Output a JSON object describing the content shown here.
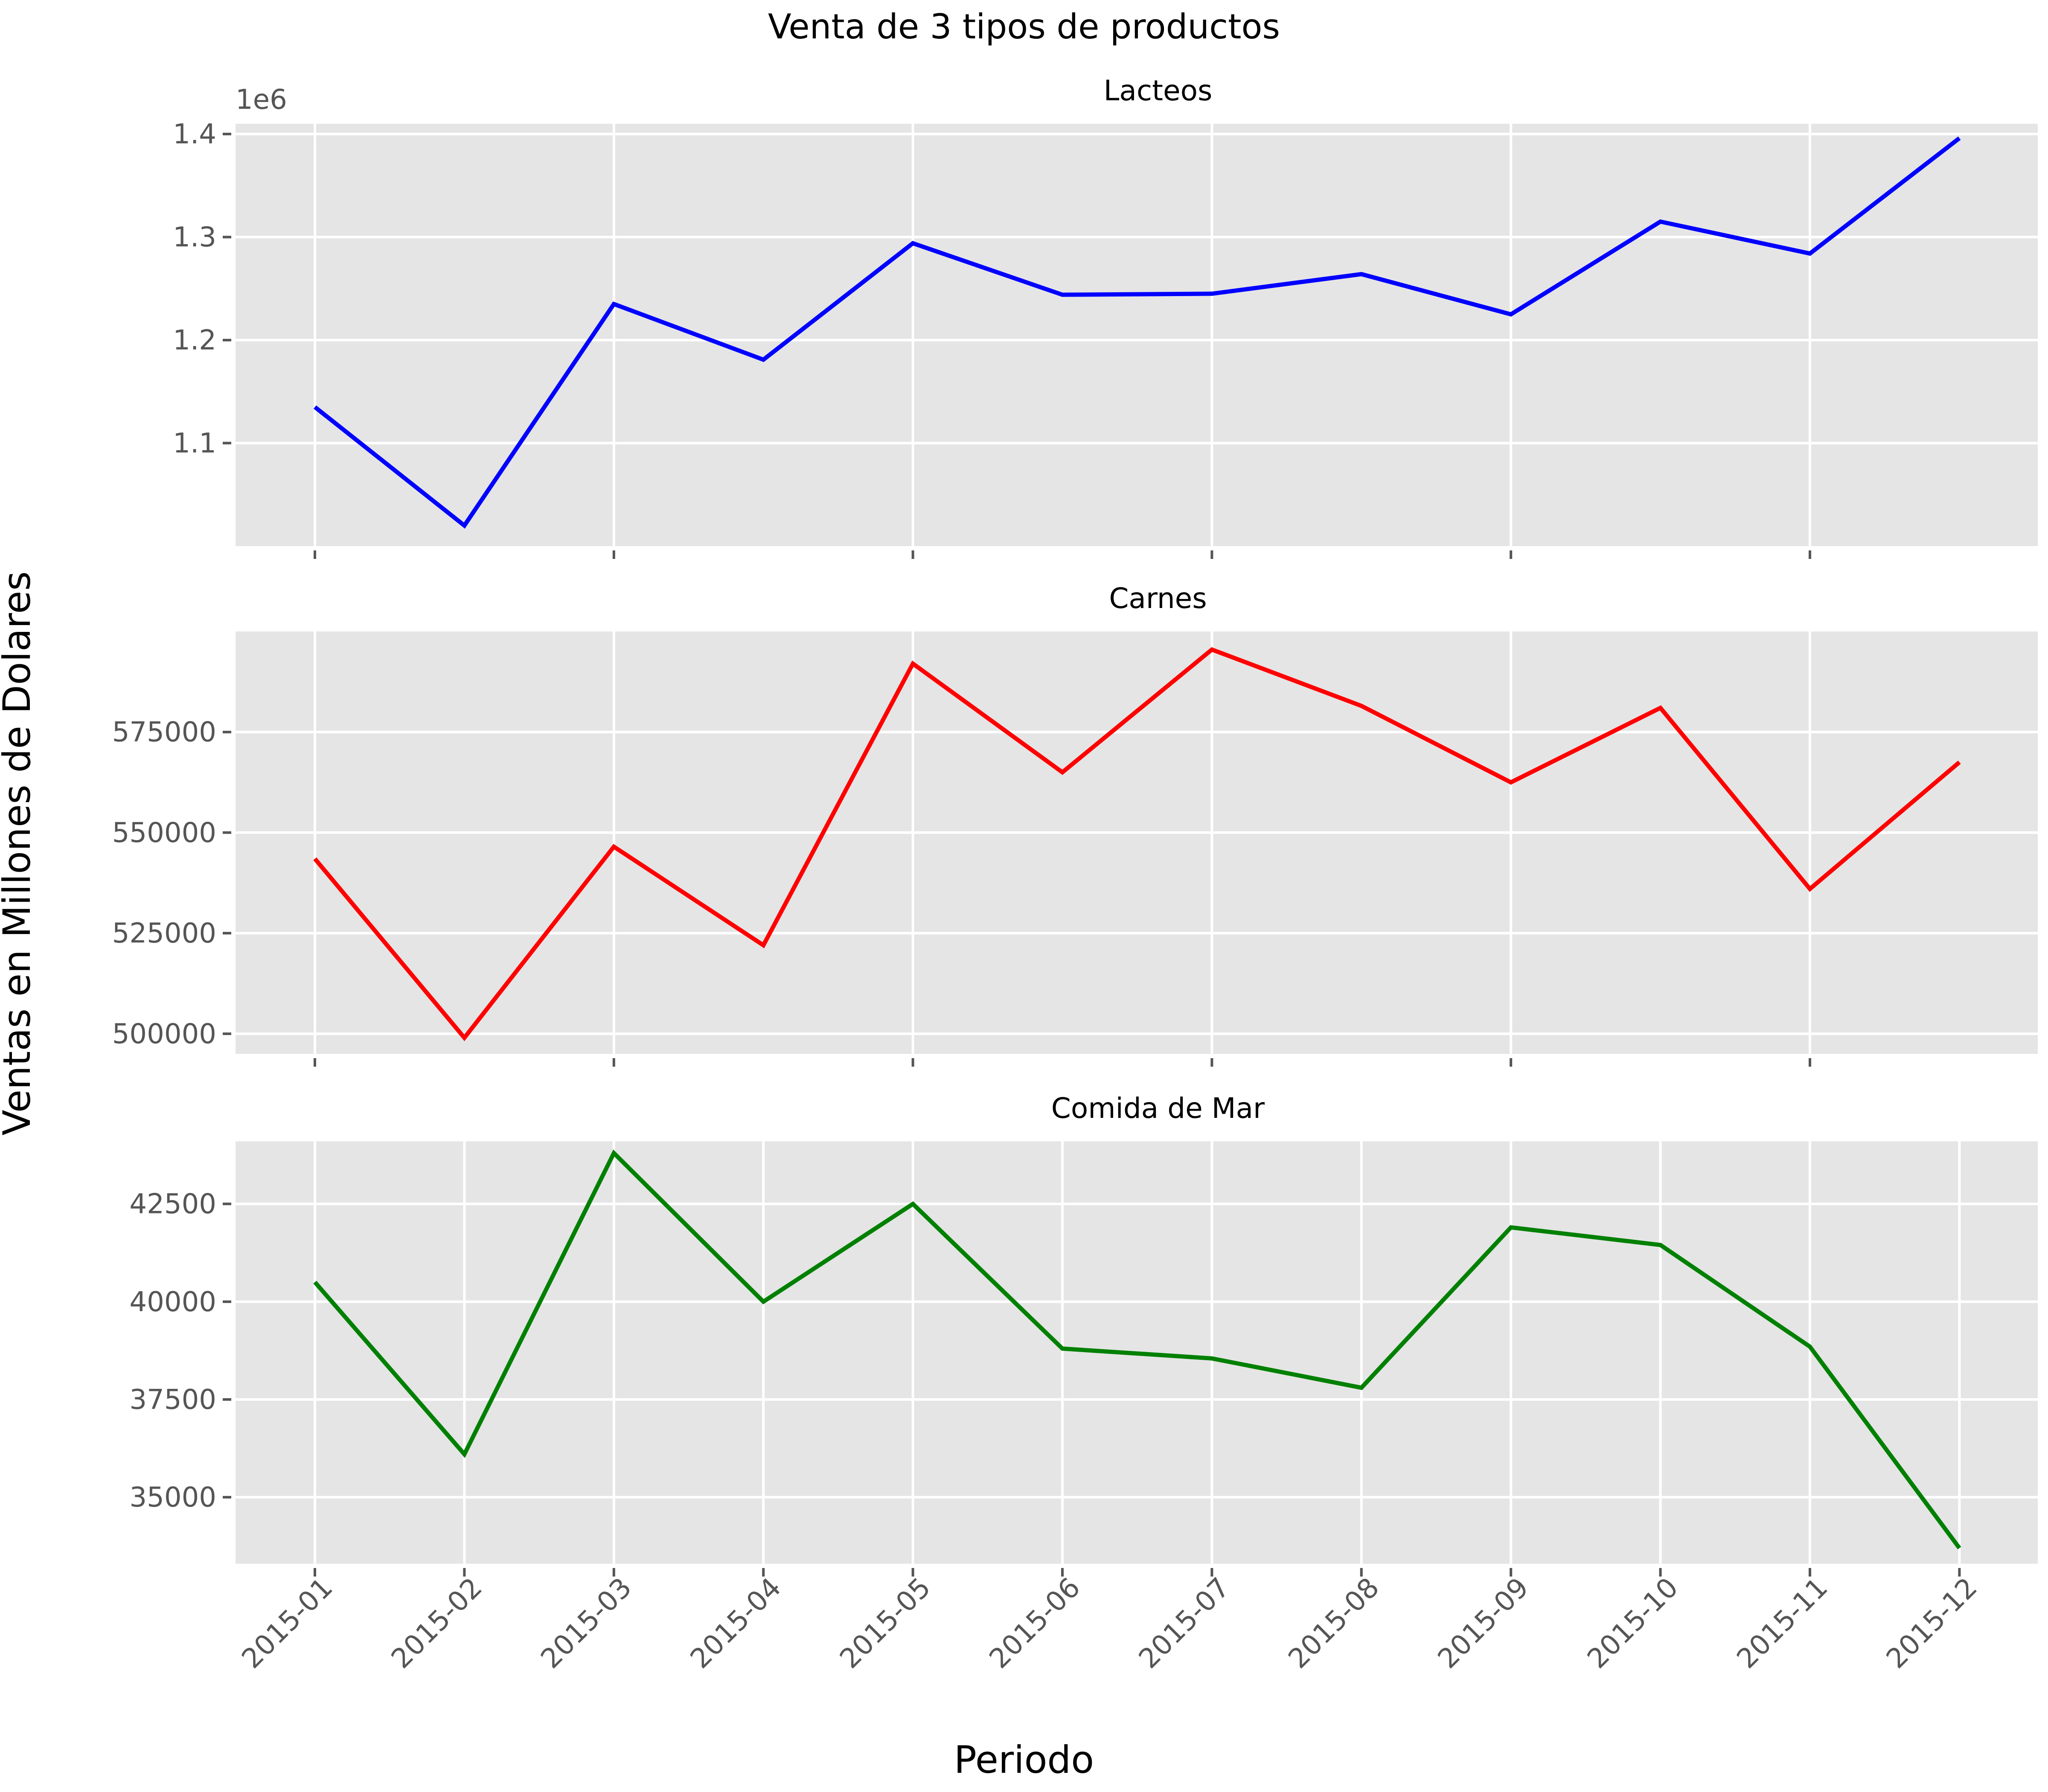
{
  "chart_data": {
    "type": "line",
    "title": "Venta de 3 tipos de productos",
    "xlabel": "Periodo",
    "ylabel": "Ventas en Millones de Dolares",
    "categories": [
      "2015-01",
      "2015-02",
      "2015-03",
      "2015-04",
      "2015-05",
      "2015-06",
      "2015-07",
      "2015-08",
      "2015-09",
      "2015-10",
      "2015-11",
      "2015-12"
    ],
    "grid": true,
    "panels": [
      {
        "subtitle": "Lacteos",
        "color": "#0000ff",
        "ylim": [
          1000000,
          1410000
        ],
        "yticks": [
          1100000,
          1200000,
          1300000,
          1400000
        ],
        "ytick_labels": [
          "1.1",
          "1.2",
          "1.3",
          "1.4"
        ],
        "offset_text": "1e6",
        "x_tick_positions": [
          0,
          2,
          4,
          6,
          8,
          10
        ],
        "values": [
          1135000,
          1020000,
          1235000,
          1181000,
          1294000,
          1244000,
          1245000,
          1264000,
          1225000,
          1315000,
          1284000,
          1396000
        ]
      },
      {
        "subtitle": "Carnes",
        "color": "#ff0000",
        "ylim": [
          495000,
          600000
        ],
        "yticks": [
          500000,
          525000,
          550000,
          575000
        ],
        "ytick_labels": [
          "500000",
          "525000",
          "550000",
          "575000"
        ],
        "x_tick_positions": [
          0,
          2,
          4,
          6,
          8,
          10
        ],
        "values": [
          543500,
          499000,
          546500,
          522000,
          592000,
          565000,
          595500,
          581500,
          562500,
          581000,
          536000,
          567500
        ]
      },
      {
        "subtitle": "Comida de Mar",
        "color": "#008000",
        "ylim": [
          33300,
          44100
        ],
        "yticks": [
          35000,
          37500,
          40000,
          42500
        ],
        "ytick_labels": [
          "35000",
          "37500",
          "40000",
          "42500"
        ],
        "x_tick_positions": [
          0,
          1,
          2,
          3,
          4,
          5,
          6,
          7,
          8,
          9,
          10,
          11
        ],
        "values": [
          40500,
          36100,
          43800,
          40000,
          42500,
          38800,
          38550,
          37800,
          41900,
          41450,
          38850,
          33700
        ]
      }
    ]
  }
}
